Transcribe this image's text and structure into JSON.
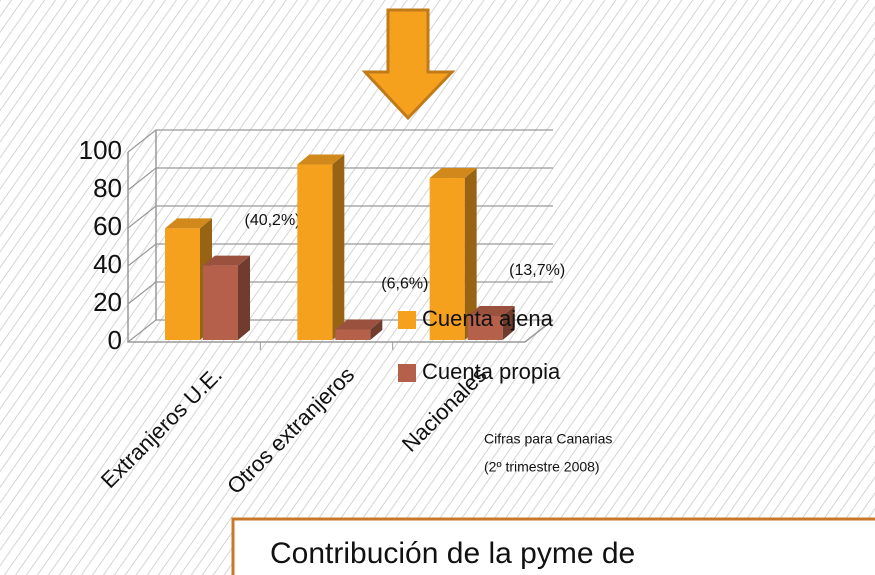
{
  "chart_data": {
    "type": "bar3d",
    "categories": [
      "Extranjeros U.E.",
      "Otros extranjeros",
      "Nacionales"
    ],
    "series": [
      {
        "name": "Cuenta ajena",
        "color": "#f5a11e",
        "values": [
          59.8,
          93.4,
          86.3
        ]
      },
      {
        "name": "Cuenta propia",
        "color": "#b5604a",
        "values": [
          40.2,
          6.6,
          13.7
        ],
        "value_labels": [
          "(40,2%)",
          "(6,6%)",
          "(13,7%)"
        ]
      }
    ],
    "ylim": [
      0,
      100
    ],
    "yticks": [
      0,
      20,
      40,
      60,
      80,
      100
    ],
    "grid": true,
    "legend": "right",
    "note": [
      "Cifras para Canarias",
      "(2º trimestre 2008)"
    ],
    "caption": "Contribución de la pyme de"
  }
}
